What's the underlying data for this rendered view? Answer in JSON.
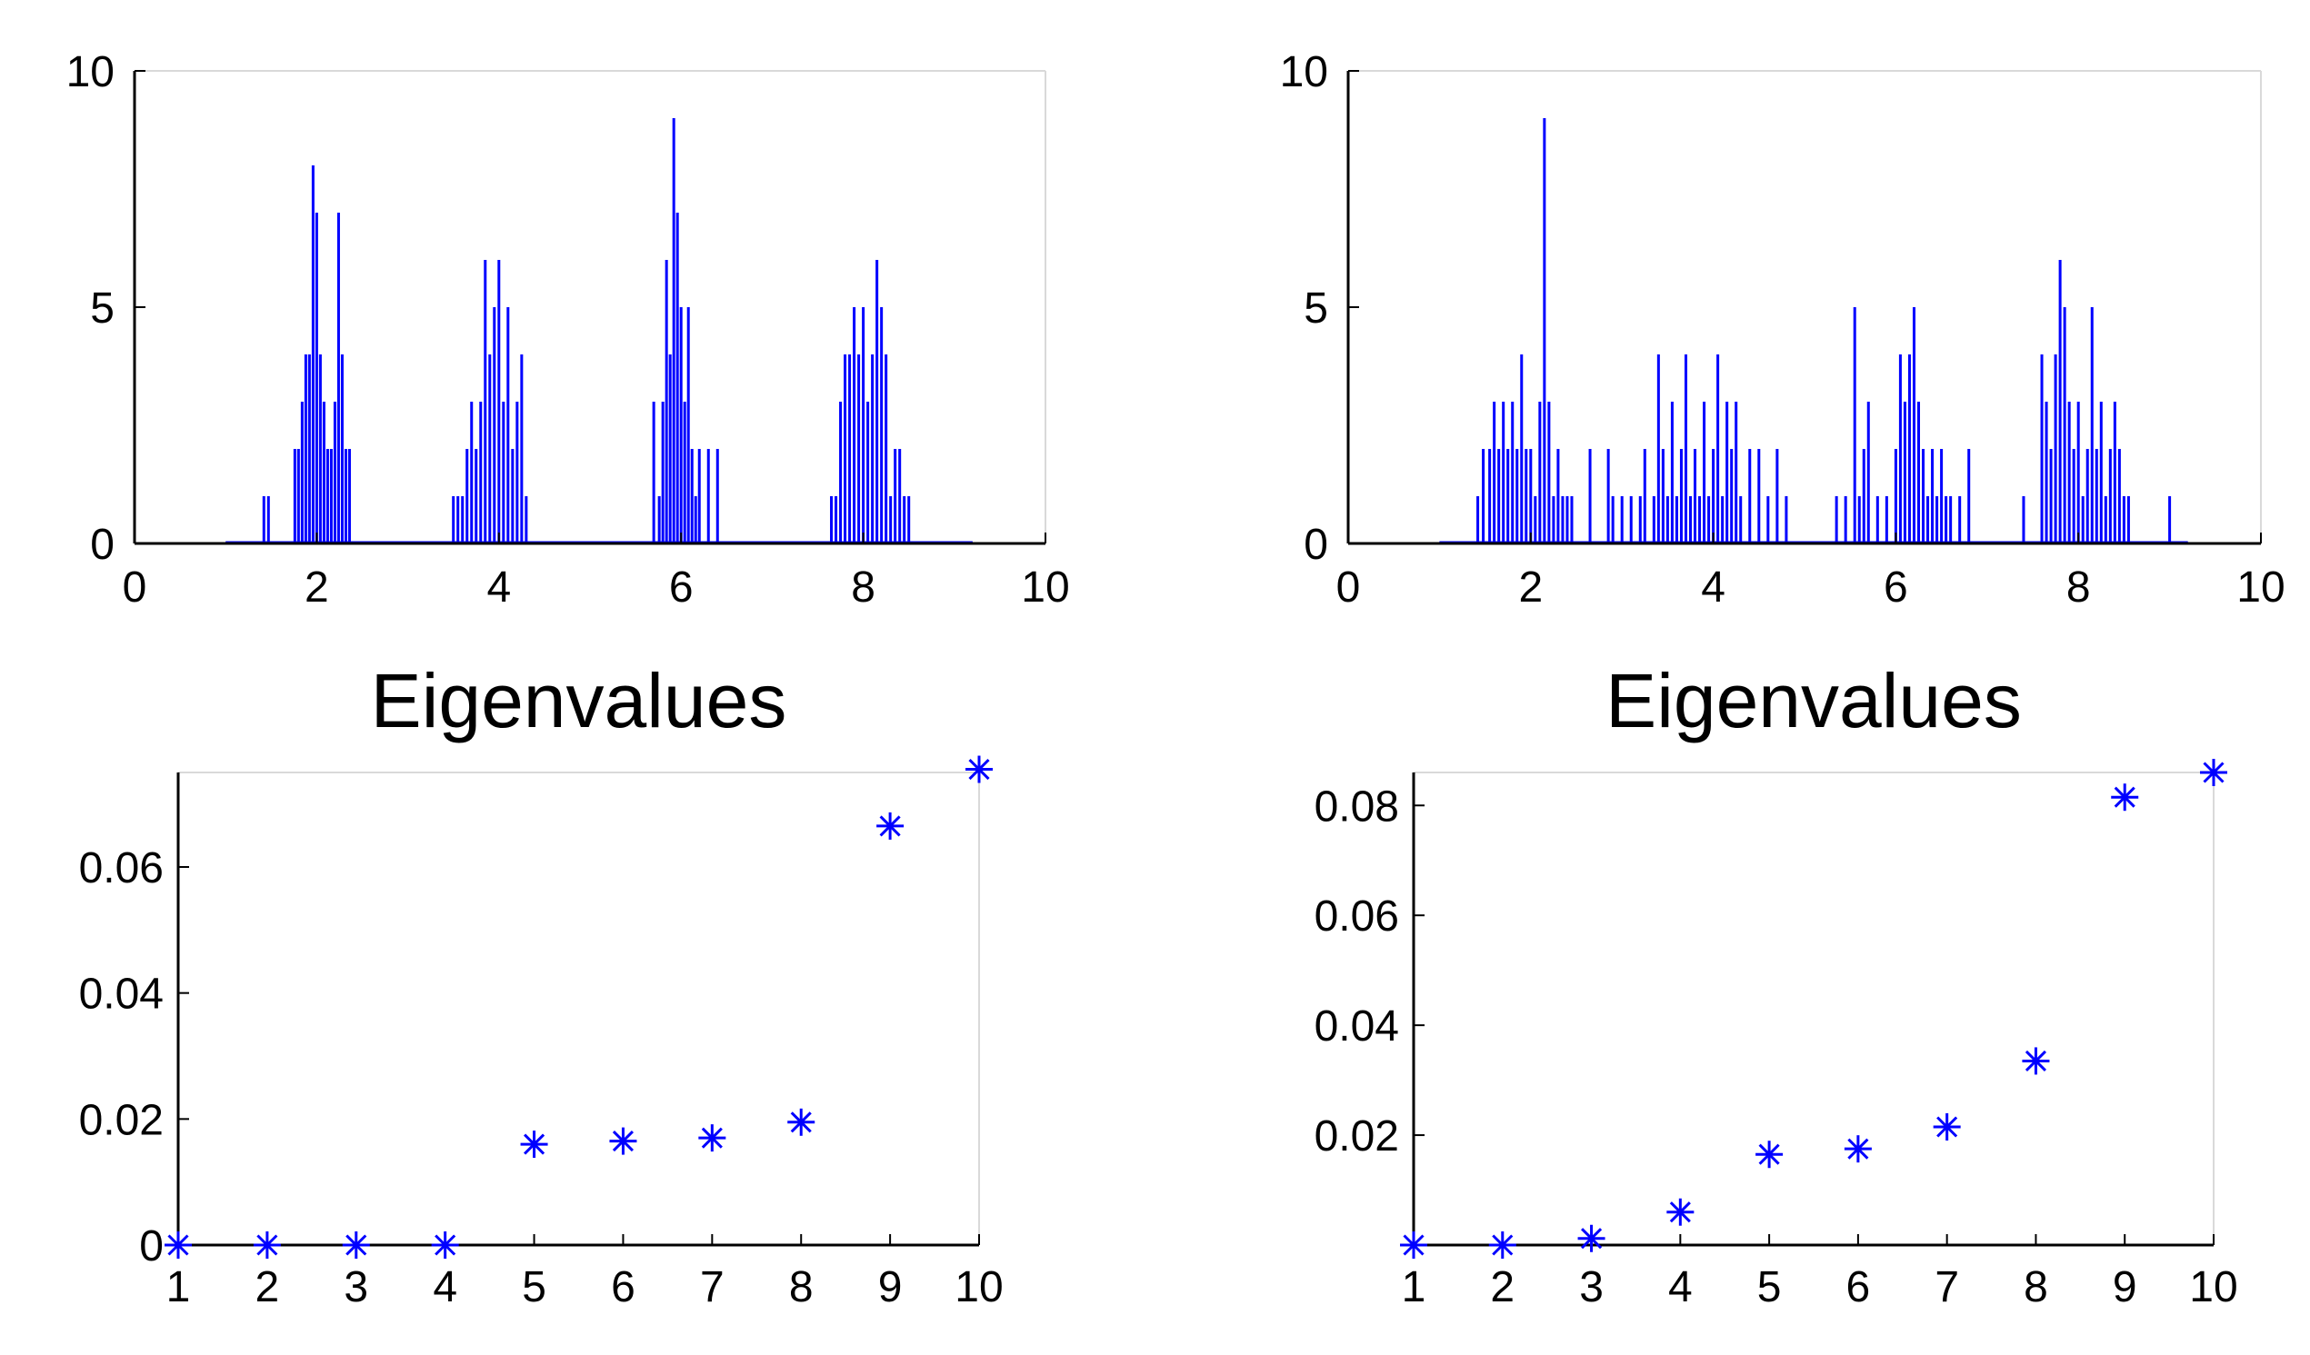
{
  "chart_data": [
    {
      "type": "bar",
      "panel": "top-left",
      "title": "",
      "xlabel": "",
      "ylabel": "",
      "xlim": [
        0,
        10
      ],
      "ylim": [
        0,
        10
      ],
      "xticks": [
        "0",
        "2",
        "4",
        "6",
        "8",
        "10"
      ],
      "yticks": [
        "0",
        "5",
        "10"
      ],
      "bin_width": 0.04,
      "color": "#0000ff",
      "grid": false,
      "bars": [
        [
          1.42,
          1
        ],
        [
          1.47,
          1
        ],
        [
          1.76,
          2
        ],
        [
          1.8,
          2
        ],
        [
          1.84,
          3
        ],
        [
          1.88,
          4
        ],
        [
          1.92,
          4
        ],
        [
          1.96,
          8
        ],
        [
          2.0,
          7
        ],
        [
          2.04,
          4
        ],
        [
          2.08,
          3
        ],
        [
          2.12,
          2
        ],
        [
          2.16,
          2
        ],
        [
          2.2,
          3
        ],
        [
          2.24,
          7
        ],
        [
          2.28,
          4
        ],
        [
          2.32,
          2
        ],
        [
          2.36,
          2
        ],
        [
          3.5,
          1
        ],
        [
          3.55,
          1
        ],
        [
          3.6,
          1
        ],
        [
          3.65,
          2
        ],
        [
          3.7,
          3
        ],
        [
          3.75,
          2
        ],
        [
          3.8,
          3
        ],
        [
          3.85,
          6
        ],
        [
          3.9,
          4
        ],
        [
          3.95,
          5
        ],
        [
          4.0,
          6
        ],
        [
          4.05,
          3
        ],
        [
          4.1,
          5
        ],
        [
          4.15,
          2
        ],
        [
          4.2,
          3
        ],
        [
          4.25,
          4
        ],
        [
          4.3,
          1
        ],
        [
          5.7,
          3
        ],
        [
          5.76,
          1
        ],
        [
          5.8,
          3
        ],
        [
          5.84,
          6
        ],
        [
          5.88,
          4
        ],
        [
          5.92,
          9
        ],
        [
          5.96,
          7
        ],
        [
          6.0,
          5
        ],
        [
          6.04,
          3
        ],
        [
          6.08,
          5
        ],
        [
          6.12,
          2
        ],
        [
          6.16,
          1
        ],
        [
          6.2,
          2
        ],
        [
          6.3,
          2
        ],
        [
          6.4,
          2
        ],
        [
          7.65,
          1
        ],
        [
          7.7,
          1
        ],
        [
          7.75,
          3
        ],
        [
          7.8,
          4
        ],
        [
          7.85,
          4
        ],
        [
          7.9,
          5
        ],
        [
          7.95,
          4
        ],
        [
          8.0,
          5
        ],
        [
          8.05,
          3
        ],
        [
          8.1,
          4
        ],
        [
          8.15,
          6
        ],
        [
          8.2,
          5
        ],
        [
          8.25,
          4
        ],
        [
          8.3,
          1
        ],
        [
          8.35,
          2
        ],
        [
          8.4,
          2
        ],
        [
          8.45,
          1
        ],
        [
          8.5,
          1
        ]
      ]
    },
    {
      "type": "bar",
      "panel": "top-right",
      "title": "",
      "xlabel": "",
      "ylabel": "",
      "xlim": [
        0,
        10
      ],
      "ylim": [
        0,
        10
      ],
      "xticks": [
        "0",
        "2",
        "4",
        "6",
        "8",
        "10"
      ],
      "yticks": [
        "0",
        "5",
        "10"
      ],
      "bin_width": 0.04,
      "color": "#0000ff",
      "grid": false,
      "bars": [
        [
          1.42,
          1
        ],
        [
          1.48,
          2
        ],
        [
          1.55,
          2
        ],
        [
          1.6,
          3
        ],
        [
          1.65,
          2
        ],
        [
          1.7,
          3
        ],
        [
          1.75,
          2
        ],
        [
          1.8,
          3
        ],
        [
          1.85,
          2
        ],
        [
          1.9,
          4
        ],
        [
          1.95,
          2
        ],
        [
          2.0,
          2
        ],
        [
          2.05,
          1
        ],
        [
          2.1,
          3
        ],
        [
          2.15,
          9
        ],
        [
          2.2,
          3
        ],
        [
          2.25,
          1
        ],
        [
          2.3,
          2
        ],
        [
          2.35,
          1
        ],
        [
          2.4,
          1
        ],
        [
          2.45,
          1
        ],
        [
          2.65,
          2
        ],
        [
          2.85,
          2
        ],
        [
          2.9,
          1
        ],
        [
          3.0,
          1
        ],
        [
          3.1,
          1
        ],
        [
          3.2,
          1
        ],
        [
          3.25,
          2
        ],
        [
          3.35,
          1
        ],
        [
          3.4,
          4
        ],
        [
          3.45,
          2
        ],
        [
          3.5,
          1
        ],
        [
          3.55,
          3
        ],
        [
          3.6,
          1
        ],
        [
          3.65,
          2
        ],
        [
          3.7,
          4
        ],
        [
          3.75,
          1
        ],
        [
          3.8,
          2
        ],
        [
          3.85,
          1
        ],
        [
          3.9,
          3
        ],
        [
          3.95,
          1
        ],
        [
          4.0,
          2
        ],
        [
          4.05,
          4
        ],
        [
          4.1,
          1
        ],
        [
          4.15,
          3
        ],
        [
          4.2,
          2
        ],
        [
          4.25,
          3
        ],
        [
          4.3,
          1
        ],
        [
          4.4,
          2
        ],
        [
          4.5,
          2
        ],
        [
          4.6,
          1
        ],
        [
          4.7,
          2
        ],
        [
          4.8,
          1
        ],
        [
          5.35,
          1
        ],
        [
          5.45,
          1
        ],
        [
          5.55,
          5
        ],
        [
          5.6,
          1
        ],
        [
          5.65,
          2
        ],
        [
          5.7,
          3
        ],
        [
          5.8,
          1
        ],
        [
          5.9,
          1
        ],
        [
          6.0,
          2
        ],
        [
          6.05,
          4
        ],
        [
          6.1,
          3
        ],
        [
          6.15,
          4
        ],
        [
          6.2,
          5
        ],
        [
          6.25,
          3
        ],
        [
          6.3,
          2
        ],
        [
          6.35,
          1
        ],
        [
          6.4,
          2
        ],
        [
          6.45,
          1
        ],
        [
          6.5,
          2
        ],
        [
          6.55,
          1
        ],
        [
          6.6,
          1
        ],
        [
          6.7,
          1
        ],
        [
          6.8,
          2
        ],
        [
          7.4,
          1
        ],
        [
          7.6,
          4
        ],
        [
          7.65,
          3
        ],
        [
          7.7,
          2
        ],
        [
          7.75,
          4
        ],
        [
          7.8,
          6
        ],
        [
          7.85,
          5
        ],
        [
          7.9,
          3
        ],
        [
          7.95,
          2
        ],
        [
          8.0,
          3
        ],
        [
          8.05,
          1
        ],
        [
          8.1,
          2
        ],
        [
          8.15,
          5
        ],
        [
          8.2,
          2
        ],
        [
          8.25,
          3
        ],
        [
          8.3,
          1
        ],
        [
          8.35,
          2
        ],
        [
          8.4,
          3
        ],
        [
          8.45,
          2
        ],
        [
          8.5,
          1
        ],
        [
          8.55,
          1
        ],
        [
          9.0,
          1
        ]
      ]
    },
    {
      "type": "scatter",
      "panel": "bottom-left",
      "title": "Eigenvalues",
      "xlabel": "",
      "ylabel": "",
      "xlim": [
        1,
        10
      ],
      "ylim": [
        0,
        0.075
      ],
      "xticks": [
        "1",
        "2",
        "3",
        "4",
        "5",
        "6",
        "7",
        "8",
        "9",
        "10"
      ],
      "yticks": [
        "0",
        "0.02",
        "0.04",
        "0.06"
      ],
      "marker": "asterisk",
      "color": "#0000ff",
      "grid": false,
      "x": [
        1,
        2,
        3,
        4,
        5,
        6,
        7,
        8,
        9,
        10
      ],
      "y": [
        0,
        0,
        0,
        0,
        0.016,
        0.0165,
        0.017,
        0.0195,
        0.0665,
        0.0755
      ]
    },
    {
      "type": "scatter",
      "panel": "bottom-right",
      "title": "Eigenvalues",
      "xlabel": "",
      "ylabel": "",
      "xlim": [
        1,
        10
      ],
      "ylim": [
        0,
        0.086
      ],
      "xticks": [
        "1",
        "2",
        "3",
        "4",
        "5",
        "6",
        "7",
        "8",
        "9",
        "10"
      ],
      "yticks": [
        "0.02",
        "0.04",
        "0.06",
        "0.08"
      ],
      "marker": "asterisk",
      "color": "#0000ff",
      "grid": false,
      "x": [
        1,
        2,
        3,
        4,
        5,
        6,
        7,
        8,
        9,
        10
      ],
      "y": [
        0,
        0,
        0.0012,
        0.006,
        0.0165,
        0.0175,
        0.0215,
        0.0335,
        0.0815,
        0.086
      ]
    }
  ]
}
